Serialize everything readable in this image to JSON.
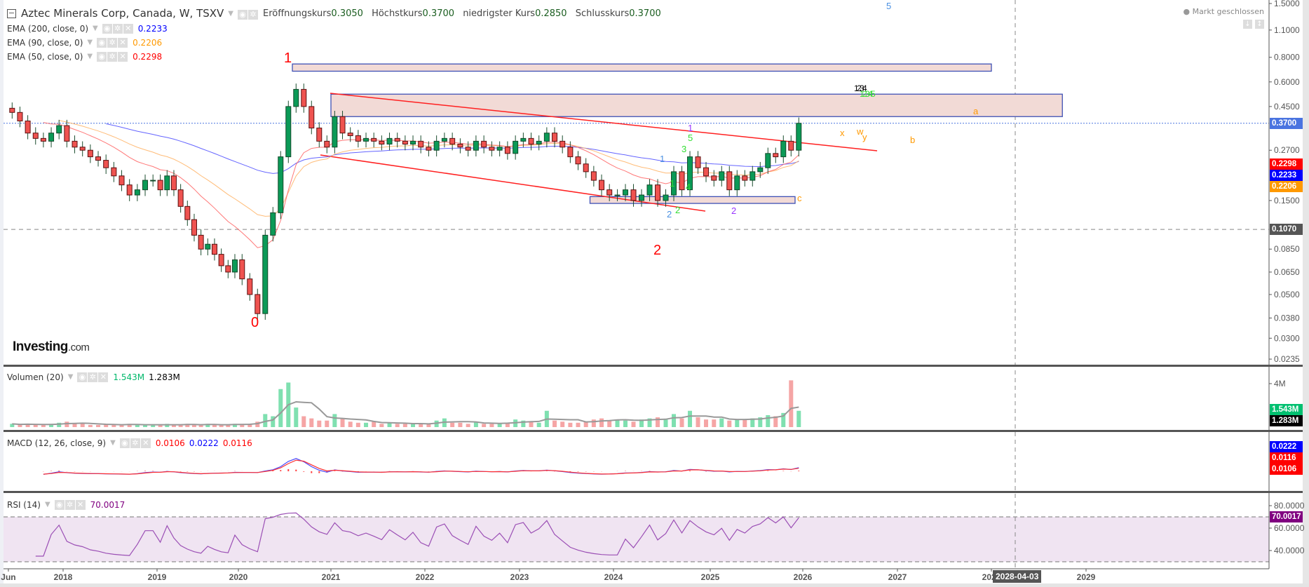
{
  "header": {
    "title": "Aztec Minerals Corp, Canada, W, TSXV",
    "open_label": "Eröffnungskurs",
    "open": "0.3050",
    "high_label": "Höchstkurs",
    "high": "0.3700",
    "low_label": "niedrigster Kurs",
    "low": "0.2850",
    "close_label": "Schlusskurs",
    "close": "0.3700",
    "market_status": "Markt geschlossen"
  },
  "indicators": {
    "ema200": {
      "label": "EMA (200, close, 0)",
      "value": "0.2233",
      "color": "#0000ff"
    },
    "ema90": {
      "label": "EMA (90, close, 0)",
      "value": "0.2206",
      "color": "#ff9900"
    },
    "ema50": {
      "label": "EMA (50, close, 0)",
      "value": "0.2298",
      "color": "#ff0000"
    },
    "volume": {
      "label": "Volumen (20)",
      "value": "1.543M",
      "ma": "1.283M"
    },
    "macd": {
      "label": "MACD (12, 26, close, 9)",
      "hist": "0.0106",
      "macd": "0.0222",
      "signal": "0.0116"
    },
    "rsi": {
      "label": "RSI (14)",
      "value": "70.0017",
      "color": "#800080"
    }
  },
  "axis_badges": {
    "close": "0.3700",
    "ema50": "0.2298",
    "ema200": "0.2233",
    "ema90": "0.2206",
    "crosshair": "0.1070",
    "vol": "1.543M",
    "vol_ma": "1.283M",
    "macd": "0.0222",
    "signal": "0.0116",
    "hist": "0.0106",
    "rsi": "70.0017",
    "crosshair_date": "2028-04-03"
  },
  "logo": {
    "brand": "Investing",
    "suffix": ".com"
  },
  "annotations": {
    "wave_0": "0",
    "wave_1": "1",
    "wave_2": "2",
    "a": "a",
    "b": "b",
    "c": "c",
    "x": "x",
    "w": "w",
    "y": "y",
    "blue5": "5",
    "black_seq": "1 2 3 4",
    "green_seq": "1 2 3 4 5",
    "p1": "1",
    "g5": "5",
    "g3": "3",
    "b1": "1",
    "g1": "1",
    "g4": "4",
    "g2": "2",
    "b2": "2",
    "p2": "2"
  },
  "chart_data": {
    "type": "candlestick",
    "scale": "log",
    "interval": "monthly approximation of weekly bars",
    "start": "2017-06",
    "closes": [
      0.42,
      0.38,
      0.33,
      0.31,
      0.3,
      0.33,
      0.36,
      0.3,
      0.28,
      0.27,
      0.25,
      0.24,
      0.22,
      0.2,
      0.18,
      0.16,
      0.17,
      0.19,
      0.19,
      0.17,
      0.2,
      0.17,
      0.14,
      0.12,
      0.1,
      0.085,
      0.09,
      0.08,
      0.07,
      0.065,
      0.075,
      0.06,
      0.05,
      0.04,
      0.1,
      0.13,
      0.25,
      0.45,
      0.55,
      0.45,
      0.35,
      0.3,
      0.28,
      0.4,
      0.33,
      0.32,
      0.3,
      0.31,
      0.3,
      0.29,
      0.31,
      0.3,
      0.29,
      0.3,
      0.28,
      0.27,
      0.3,
      0.31,
      0.29,
      0.28,
      0.27,
      0.3,
      0.28,
      0.27,
      0.28,
      0.26,
      0.3,
      0.31,
      0.29,
      0.3,
      0.33,
      0.3,
      0.28,
      0.25,
      0.23,
      0.21,
      0.19,
      0.17,
      0.16,
      0.16,
      0.17,
      0.15,
      0.16,
      0.18,
      0.15,
      0.16,
      0.21,
      0.17,
      0.25,
      0.22,
      0.2,
      0.19,
      0.21,
      0.17,
      0.2,
      0.19,
      0.21,
      0.22,
      0.26,
      0.25,
      0.3,
      0.27,
      0.37
    ],
    "volumes_M": [
      0.3,
      0.2,
      0.3,
      0.2,
      0.2,
      0.3,
      0.4,
      0.5,
      0.3,
      0.3,
      0.2,
      0.2,
      0.3,
      0.2,
      0.2,
      0.3,
      0.2,
      0.2,
      0.2,
      0.2,
      0.3,
      0.2,
      0.2,
      0.3,
      0.2,
      0.2,
      0.3,
      0.2,
      0.2,
      0.2,
      0.3,
      0.3,
      0.3,
      0.5,
      1.2,
      1.0,
      3.5,
      4.1,
      1.8,
      1.0,
      0.8,
      0.6,
      0.6,
      1.2,
      0.8,
      0.5,
      0.4,
      0.4,
      0.5,
      0.3,
      0.4,
      0.3,
      0.3,
      0.3,
      0.3,
      0.3,
      0.6,
      0.8,
      0.4,
      0.4,
      0.3,
      0.5,
      0.3,
      0.3,
      0.3,
      0.4,
      0.7,
      0.6,
      0.5,
      0.4,
      1.5,
      0.6,
      0.5,
      0.4,
      0.4,
      0.5,
      0.7,
      0.8,
      0.6,
      0.7,
      0.6,
      0.5,
      0.7,
      0.8,
      0.9,
      0.7,
      1.2,
      0.8,
      1.5,
      0.9,
      0.7,
      0.7,
      0.8,
      0.6,
      0.7,
      0.7,
      0.8,
      0.9,
      1.1,
      1.0,
      1.3,
      4.3,
      1.5
    ],
    "price_ticks": [
      "1.5000",
      "1.1000",
      "0.8000",
      "0.6000",
      "0.4500",
      "0.2700",
      "0.1500",
      "0.0850",
      "0.0650",
      "0.0500",
      "0.0380",
      "0.0300",
      "0.0235"
    ],
    "volume_ticks": [
      "4M"
    ],
    "rsi_ticks": [
      "80.0000",
      "60.0000",
      "40.0000"
    ],
    "rsi_bands": [
      70,
      30
    ],
    "x_ticks": [
      "Jun",
      "2018",
      "2019",
      "2020",
      "2021",
      "2022",
      "2023",
      "2024",
      "2025",
      "2026",
      "2027",
      "2028",
      "2029"
    ],
    "zones": [
      {
        "name": "upper-resistance-zone",
        "from": "2020-08",
        "to": "2028-01",
        "low": 0.68,
        "high": 0.74
      },
      {
        "name": "resistance-zone",
        "from": "2021-01",
        "to": "2028-10",
        "low": 0.4,
        "high": 0.52
      },
      {
        "name": "support-zone",
        "from": "2023-10",
        "to": "2025-12",
        "low": 0.145,
        "high": 0.157
      }
    ],
    "colors": {
      "up": "#0b9a57",
      "down": "#ef5350",
      "ema200": "#4a4aff",
      "ema90": "#ffb060",
      "ema50": "#ff6060",
      "zone": "#f2dad6",
      "zone_border": "#3f51b5"
    }
  }
}
